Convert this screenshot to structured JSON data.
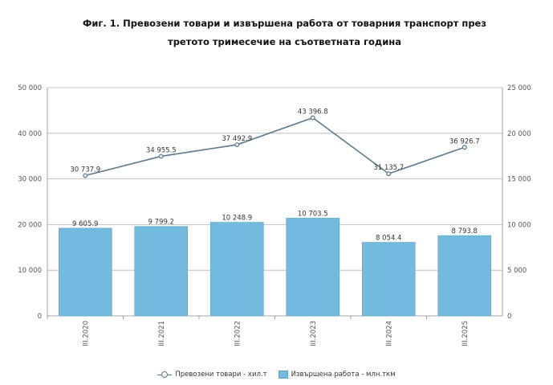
{
  "chart_data": {
    "type": "bar+line",
    "title_line1": "Фиг. 1. Превозени товари и извършена работа от товарния транспорт през",
    "title_line2": "третото тримесечие на съответната година",
    "categories": [
      "III.2020",
      "III.2021",
      "III.2022",
      "III.2023",
      "III.2024",
      "III.2025"
    ],
    "series": [
      {
        "name": "Превозени товари - хил.т",
        "kind": "line",
        "axis": "left",
        "values": [
          30737.9,
          34955.5,
          37492.9,
          43396.8,
          31135.7,
          36926.7
        ],
        "labels": [
          "30 737.9",
          "34 955.5",
          "37 492.9",
          "43 396.8",
          "31 135.7",
          "36 926.7"
        ],
        "color": "#5a7a8f"
      },
      {
        "name": "Извършена работа - млн.ткм",
        "kind": "bar",
        "axis": "right",
        "values": [
          9605.9,
          9799.2,
          10248.9,
          10703.5,
          8054.4,
          8793.8
        ],
        "labels": [
          "9 605.9",
          "9 799.2",
          "10 248.9",
          "10 703.5",
          "8 054.4",
          "8 793.8"
        ],
        "color": "#73bbde"
      }
    ],
    "left_axis": {
      "ylim": [
        0,
        50000
      ],
      "ticks": [
        0,
        10000,
        20000,
        30000,
        40000,
        50000
      ],
      "tick_labels": [
        "0",
        "10 000",
        "20 000",
        "30 000",
        "40 000",
        "50 000"
      ]
    },
    "right_axis": {
      "ylim": [
        0,
        25000
      ],
      "ticks": [
        0,
        5000,
        10000,
        15000,
        20000,
        25000
      ],
      "tick_labels": [
        "0",
        "5 000",
        "10 000",
        "15 000",
        "20 000",
        "25 000"
      ]
    },
    "grid": true,
    "legend_position": "bottom"
  }
}
